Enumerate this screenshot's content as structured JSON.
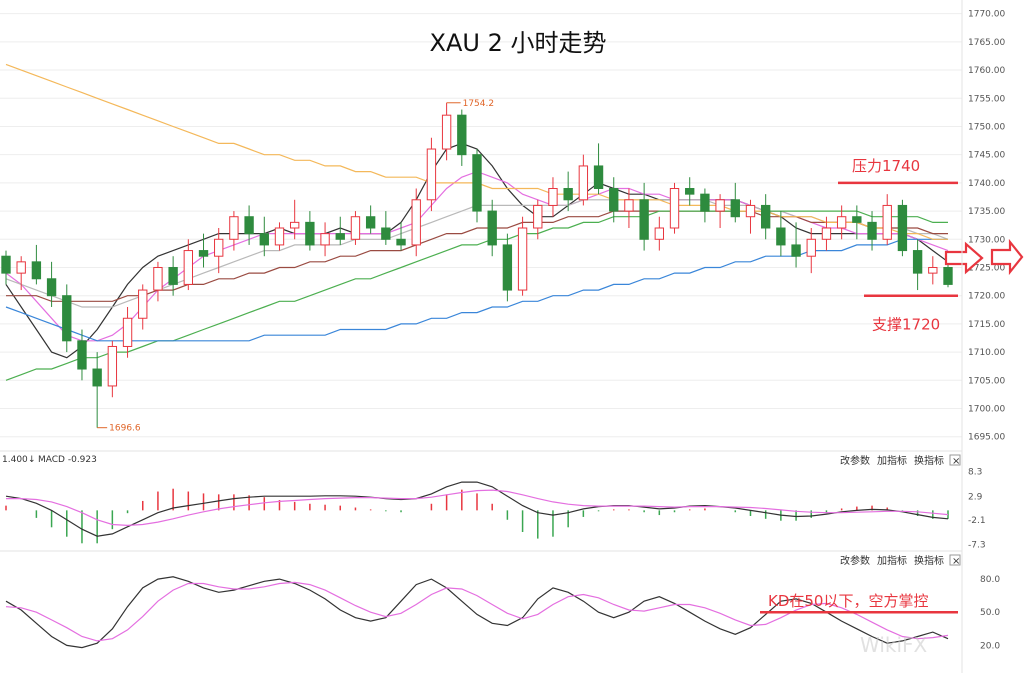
{
  "chart_data": [
    {
      "type": "candlestick",
      "title": "XAU 2 小时走势",
      "ylim": [
        1693,
        1771
      ],
      "yticks": [
        "1770.00",
        "1765.00",
        "1760.00",
        "1755.00",
        "1750.00",
        "1745.00",
        "1740.00",
        "1735.00",
        "1730.00",
        "1725.00",
        "1720.00",
        "1715.00",
        "1710.00",
        "1705.00",
        "1700.00",
        "1695.00"
      ],
      "candles": [
        [
          1727,
          1728,
          1722,
          1724
        ],
        [
          1724,
          1727,
          1721,
          1726
        ],
        [
          1726,
          1729,
          1722,
          1723
        ],
        [
          1723,
          1726,
          1718,
          1720
        ],
        [
          1720,
          1722,
          1710,
          1712
        ],
        [
          1712,
          1714,
          1705,
          1707
        ],
        [
          1707,
          1710,
          1696.6,
          1704
        ],
        [
          1704,
          1712,
          1702,
          1711
        ],
        [
          1711,
          1718,
          1709,
          1716
        ],
        [
          1716,
          1722,
          1714,
          1721
        ],
        [
          1721,
          1726,
          1719,
          1725
        ],
        [
          1725,
          1727,
          1720,
          1722
        ],
        [
          1722,
          1730,
          1721,
          1728
        ],
        [
          1728,
          1731,
          1725,
          1727
        ],
        [
          1727,
          1732,
          1724,
          1730
        ],
        [
          1730,
          1735,
          1728,
          1734
        ],
        [
          1734,
          1736,
          1729,
          1731
        ],
        [
          1731,
          1734,
          1727,
          1729
        ],
        [
          1729,
          1733,
          1728,
          1732
        ],
        [
          1732,
          1737,
          1730,
          1733
        ],
        [
          1733,
          1735,
          1728,
          1729
        ],
        [
          1729,
          1733,
          1727,
          1731
        ],
        [
          1731,
          1734,
          1729,
          1730
        ],
        [
          1730,
          1735,
          1729,
          1734
        ],
        [
          1734,
          1736,
          1731,
          1732
        ],
        [
          1732,
          1735,
          1729,
          1730
        ],
        [
          1730,
          1733,
          1728,
          1729
        ],
        [
          1729,
          1739,
          1727,
          1737
        ],
        [
          1737,
          1748,
          1735,
          1746
        ],
        [
          1746,
          1754.2,
          1744,
          1752
        ],
        [
          1752,
          1753,
          1743,
          1745
        ],
        [
          1745,
          1746,
          1733,
          1735
        ],
        [
          1735,
          1737,
          1727,
          1729
        ],
        [
          1729,
          1731,
          1719,
          1721
        ],
        [
          1721,
          1734,
          1720,
          1732
        ],
        [
          1732,
          1737,
          1730,
          1736
        ],
        [
          1736,
          1741,
          1734,
          1739
        ],
        [
          1739,
          1742,
          1735,
          1737
        ],
        [
          1737,
          1745,
          1736,
          1743
        ],
        [
          1743,
          1747,
          1738,
          1739
        ],
        [
          1739,
          1741,
          1733,
          1735
        ],
        [
          1735,
          1739,
          1732,
          1737
        ],
        [
          1737,
          1740,
          1728,
          1730
        ],
        [
          1730,
          1734,
          1728,
          1732
        ],
        [
          1732,
          1740,
          1731,
          1739
        ],
        [
          1739,
          1741,
          1736,
          1738
        ],
        [
          1738,
          1739,
          1733,
          1735
        ],
        [
          1735,
          1738,
          1732,
          1737
        ],
        [
          1737,
          1740,
          1733,
          1734
        ],
        [
          1734,
          1737,
          1731,
          1736
        ],
        [
          1736,
          1738,
          1730,
          1732
        ],
        [
          1732,
          1735,
          1727,
          1729
        ],
        [
          1729,
          1733,
          1725,
          1727
        ],
        [
          1727,
          1732,
          1724,
          1730
        ],
        [
          1730,
          1734,
          1728,
          1732
        ],
        [
          1732,
          1736,
          1730,
          1734
        ],
        [
          1734,
          1736,
          1730,
          1733
        ],
        [
          1733,
          1735,
          1728,
          1730
        ],
        [
          1730,
          1738,
          1729,
          1736
        ],
        [
          1736,
          1737,
          1727,
          1728
        ],
        [
          1728,
          1730,
          1721,
          1724
        ],
        [
          1724,
          1727,
          1722,
          1725
        ],
        [
          1725,
          1727,
          1721.5,
          1722
        ]
      ],
      "moving_averages": [
        {
          "color": "#333333",
          "values": [
            1722,
            1718,
            1714,
            1710,
            1709,
            1711,
            1714,
            1718,
            1722,
            1725,
            1727,
            1728,
            1729,
            1730,
            1731,
            1731,
            1731,
            1731,
            1732,
            1731,
            1731,
            1731,
            1732,
            1731,
            1731,
            1731,
            1733,
            1737,
            1742,
            1746,
            1747,
            1746,
            1743,
            1739,
            1736,
            1734,
            1734,
            1736,
            1738,
            1740,
            1739,
            1738,
            1738,
            1737,
            1737,
            1737,
            1737,
            1737,
            1737,
            1736,
            1735,
            1734,
            1732,
            1731,
            1731,
            1731,
            1731,
            1731,
            1731,
            1731,
            1730,
            1728,
            1726
          ]
        },
        {
          "color": "#e46fe0",
          "values": [
            1724,
            1722,
            1719,
            1716,
            1713,
            1712,
            1712,
            1713,
            1715,
            1718,
            1721,
            1723,
            1725,
            1727,
            1728,
            1729,
            1730,
            1731,
            1731,
            1731,
            1731,
            1731,
            1731,
            1731,
            1731,
            1731,
            1732,
            1733,
            1736,
            1739,
            1741,
            1742,
            1741,
            1740,
            1738,
            1737,
            1736,
            1736,
            1737,
            1738,
            1739,
            1739,
            1738,
            1738,
            1737,
            1737,
            1737,
            1737,
            1737,
            1736,
            1735,
            1735,
            1734,
            1733,
            1732,
            1732,
            1731,
            1731,
            1731,
            1731,
            1730,
            1729,
            1728
          ]
        },
        {
          "color": "#b9b9b9",
          "values": [
            1723,
            1722,
            1721,
            1720,
            1719,
            1718,
            1718,
            1718,
            1719,
            1720,
            1721,
            1722,
            1723,
            1724,
            1725,
            1726,
            1727,
            1728,
            1728,
            1729,
            1729,
            1729,
            1729,
            1730,
            1730,
            1730,
            1731,
            1732,
            1733,
            1734,
            1735,
            1736,
            1736,
            1736,
            1736,
            1736,
            1736,
            1736,
            1737,
            1737,
            1737,
            1737,
            1737,
            1737,
            1737,
            1737,
            1737,
            1736,
            1736,
            1736,
            1735,
            1735,
            1734,
            1734,
            1733,
            1733,
            1733,
            1732,
            1732,
            1732,
            1731,
            1731,
            1730
          ]
        },
        {
          "color": "#9a4b42",
          "values": [
            1720,
            1720,
            1720,
            1719,
            1719,
            1719,
            1719,
            1719,
            1720,
            1720,
            1721,
            1721,
            1722,
            1722,
            1723,
            1723,
            1724,
            1724,
            1725,
            1725,
            1726,
            1726,
            1727,
            1727,
            1728,
            1728,
            1728,
            1729,
            1730,
            1731,
            1731,
            1732,
            1732,
            1732,
            1733,
            1733,
            1733,
            1734,
            1734,
            1734,
            1735,
            1735,
            1735,
            1735,
            1735,
            1735,
            1735,
            1735,
            1735,
            1735,
            1734,
            1734,
            1734,
            1733,
            1733,
            1733,
            1733,
            1732,
            1732,
            1732,
            1732,
            1731,
            1731
          ]
        },
        {
          "color": "#4caf50",
          "values": [
            1705,
            1706,
            1707,
            1707,
            1708,
            1709,
            1709,
            1710,
            1710,
            1711,
            1712,
            1712,
            1713,
            1714,
            1715,
            1716,
            1717,
            1718,
            1719,
            1719,
            1720,
            1721,
            1722,
            1723,
            1723,
            1724,
            1725,
            1726,
            1727,
            1728,
            1729,
            1729,
            1730,
            1730,
            1731,
            1731,
            1732,
            1732,
            1733,
            1733,
            1734,
            1734,
            1734,
            1735,
            1735,
            1735,
            1735,
            1735,
            1735,
            1735,
            1735,
            1735,
            1735,
            1735,
            1735,
            1735,
            1735,
            1734,
            1734,
            1734,
            1734,
            1733,
            1733
          ]
        },
        {
          "color": "#3a86d9",
          "values": [
            1718,
            1717,
            1716,
            1715,
            1714,
            1713,
            1712,
            1712,
            1712,
            1712,
            1712,
            1712,
            1712,
            1712,
            1712,
            1712,
            1712,
            1713,
            1713,
            1713,
            1713,
            1713,
            1714,
            1714,
            1714,
            1714,
            1715,
            1715,
            1716,
            1716,
            1717,
            1717,
            1718,
            1718,
            1719,
            1719,
            1720,
            1720,
            1721,
            1721,
            1722,
            1722,
            1723,
            1723,
            1724,
            1724,
            1725,
            1725,
            1726,
            1726,
            1727,
            1727,
            1727,
            1728,
            1728,
            1728,
            1729,
            1729,
            1729,
            1730,
            1730,
            1730,
            1730
          ]
        },
        {
          "color": "#f4b85a",
          "values": [
            1761,
            1760,
            1759,
            1758,
            1757,
            1756,
            1755,
            1754,
            1753,
            1752,
            1751,
            1750,
            1749,
            1748,
            1747,
            1747,
            1746,
            1745,
            1745,
            1744,
            1744,
            1743,
            1743,
            1742,
            1742,
            1741,
            1741,
            1741,
            1740,
            1740,
            1740,
            1740,
            1739,
            1739,
            1739,
            1739,
            1738,
            1738,
            1738,
            1738,
            1737,
            1737,
            1737,
            1737,
            1736,
            1736,
            1736,
            1736,
            1735,
            1735,
            1735,
            1734,
            1734,
            1734,
            1733,
            1733,
            1733,
            1732,
            1732,
            1731,
            1731,
            1730,
            1730
          ]
        }
      ],
      "high_label": "1754.2",
      "low_label": "1696.6",
      "annotations": {
        "resistance": "压力1740",
        "support": "支撑1720"
      },
      "resistance_value": 1740,
      "support_value": 1720
    },
    {
      "type": "macd",
      "ylim": [
        -8,
        9
      ],
      "yticks": [
        "8.3",
        "2.9",
        "-2.1",
        "-7.3"
      ],
      "header_left": "1.400",
      "header_macd": "MACD -0.923",
      "dif": [
        3,
        2.5,
        1.5,
        0,
        -2,
        -4,
        -5.5,
        -5,
        -3.5,
        -2,
        -0.5,
        0.5,
        1,
        1.5,
        2,
        2.5,
        2.8,
        3,
        3,
        3,
        3,
        3.1,
        3.1,
        3,
        2.8,
        2.5,
        2.3,
        2.5,
        3.5,
        5,
        6,
        6,
        5,
        3,
        1,
        -0.5,
        -1,
        -0.5,
        0.3,
        0.8,
        1,
        1,
        0.7,
        0.3,
        0.5,
        0.9,
        1,
        0.8,
        0.5,
        0,
        -0.5,
        -1,
        -1.3,
        -1.2,
        -0.8,
        -0.3,
        0,
        0.2,
        0.1,
        -0.3,
        -0.9,
        -1.5,
        -1.8
      ],
      "dea": [
        2.5,
        2.5,
        2.3,
        1.8,
        0.8,
        -0.5,
        -2,
        -3,
        -3.2,
        -3,
        -2.5,
        -1.8,
        -1,
        -0.3,
        0.3,
        0.8,
        1.2,
        1.6,
        1.9,
        2.1,
        2.3,
        2.5,
        2.6,
        2.7,
        2.7,
        2.6,
        2.5,
        2.5,
        2.8,
        3.3,
        3.8,
        4.2,
        4.3,
        4,
        3.3,
        2.5,
        1.8,
        1.3,
        1,
        0.9,
        0.9,
        0.9,
        0.9,
        0.8,
        0.7,
        0.8,
        0.8,
        0.8,
        0.7,
        0.6,
        0.4,
        0.1,
        -0.2,
        -0.4,
        -0.5,
        -0.5,
        -0.4,
        -0.3,
        -0.2,
        -0.2,
        -0.3,
        -0.6,
        -0.9
      ],
      "hist_colors": {
        "up": "#e8363f",
        "down": "#3aa651"
      }
    },
    {
      "type": "line",
      "ylim": [
        14,
        90
      ],
      "yticks": [
        "80.0",
        "50.0",
        "20.0"
      ],
      "k": [
        60,
        52,
        40,
        28,
        20,
        18,
        22,
        35,
        55,
        72,
        80,
        82,
        78,
        72,
        68,
        70,
        74,
        78,
        80,
        76,
        70,
        62,
        52,
        45,
        42,
        45,
        60,
        75,
        80,
        72,
        60,
        48,
        40,
        38,
        45,
        62,
        72,
        68,
        60,
        50,
        45,
        50,
        60,
        64,
        58,
        50,
        42,
        35,
        30,
        36,
        48,
        60,
        62,
        58,
        50,
        42,
        35,
        28,
        22,
        24,
        28,
        32,
        26
      ],
      "d": [
        55,
        54,
        50,
        43,
        36,
        28,
        24,
        26,
        34,
        46,
        60,
        70,
        76,
        76,
        73,
        71,
        71,
        73,
        76,
        77,
        75,
        70,
        63,
        56,
        50,
        46,
        49,
        57,
        66,
        72,
        71,
        65,
        57,
        49,
        44,
        48,
        57,
        64,
        66,
        63,
        57,
        52,
        51,
        54,
        57,
        57,
        54,
        49,
        43,
        38,
        39,
        45,
        52,
        57,
        58,
        54,
        48,
        41,
        34,
        28,
        26,
        27,
        29
      ],
      "annotation": "KD在50以下，空方掌控",
      "ref_value": 50
    }
  ],
  "toolbar": {
    "btn1": "改参数",
    "btn2": "加指标",
    "btn3": "换指标",
    "close": "×"
  },
  "watermark": "WikiFX"
}
